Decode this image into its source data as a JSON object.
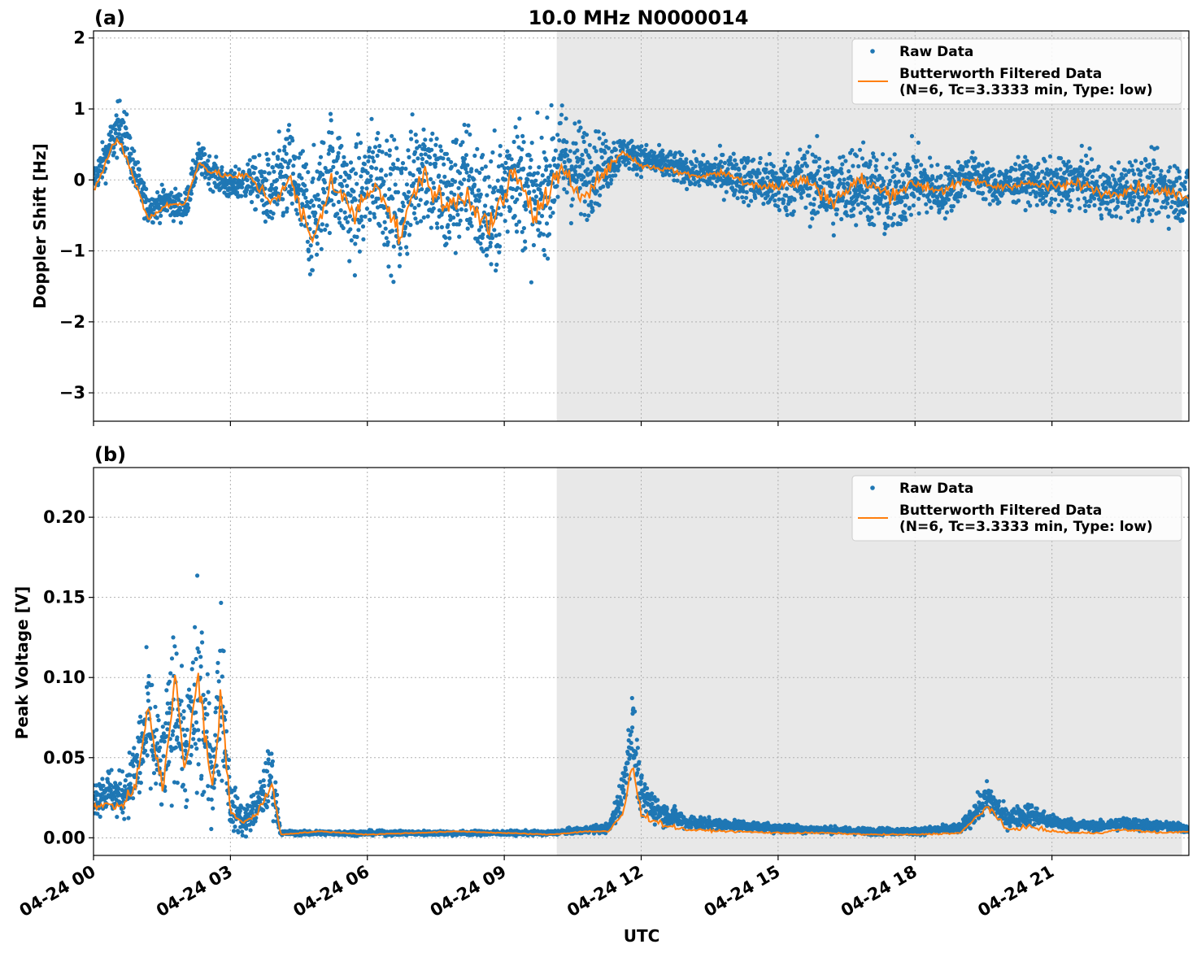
{
  "figure": {
    "title": "10.0 MHz N0000014",
    "xlabel": "UTC",
    "x_ticks": [
      "04-24 00",
      "04-24 03",
      "04-24 06",
      "04-24 09",
      "04-24 12",
      "04-24 15",
      "04-24 18",
      "04-24 21"
    ]
  },
  "colors": {
    "raw": "#1f77b4",
    "filtered": "#ff7f0e",
    "night_shade": "#e8e8e8",
    "grid": "#b0b0b0"
  },
  "chart_data": [
    {
      "type": "scatter",
      "panel_label": "(a)",
      "title": "10.0 MHz N0000014",
      "ylabel": "Doppler Shift [Hz]",
      "xlabel": "",
      "x_unit": "hours UTC",
      "xlim": [
        0,
        24
      ],
      "ylim": [
        -3.4,
        2.1
      ],
      "y_ticks": [
        "2",
        "1",
        "0",
        "−1",
        "−2",
        "−3"
      ],
      "y_tick_values": [
        2,
        1,
        0,
        -1,
        -2,
        -3
      ],
      "shaded_region": [
        10.15,
        23.85
      ],
      "grid": true,
      "legend_position": "top-right",
      "legend": [
        "Raw Data",
        "Butterworth Filtered Data\n(N=6, Tc=3.3333 min, Type: low)"
      ],
      "series": [
        {
          "name": "Raw Data",
          "style": "points",
          "x": [
            0,
            0.25,
            0.45,
            0.6,
            0.75,
            0.9,
            1.2,
            1.6,
            2.0,
            2.3,
            2.6,
            3.0,
            3.4,
            3.9,
            4.3,
            4.8,
            5.2,
            5.7,
            6.2,
            6.7,
            7.2,
            7.7,
            8.2,
            8.7,
            9.2,
            9.7,
            10.2,
            10.7,
            11.2,
            11.6,
            12.0,
            12.6,
            13.2,
            13.8,
            14.4,
            15.0,
            15.6,
            16.2,
            16.8,
            17.4,
            18.0,
            18.6,
            19.2,
            19.8,
            20.4,
            21.0,
            21.6,
            22.2,
            22.8,
            23.4,
            23.9
          ],
          "y": [
            0.0,
            0.3,
            0.6,
            0.8,
            0.5,
            0.1,
            -0.4,
            -0.3,
            -0.4,
            0.3,
            0.1,
            -0.1,
            0.0,
            -0.2,
            0.1,
            -0.6,
            0.2,
            -0.4,
            0.1,
            -0.5,
            0.3,
            -0.3,
            0.0,
            -0.6,
            0.2,
            -0.4,
            0.3,
            0.1,
            0.2,
            0.4,
            0.3,
            0.2,
            0.1,
            0.1,
            0.0,
            -0.1,
            0.0,
            -0.2,
            0.0,
            -0.3,
            0.0,
            -0.2,
            0.1,
            -0.1,
            0.0,
            -0.1,
            0.0,
            -0.2,
            -0.1,
            -0.1,
            -0.2
          ],
          "spread": [
            0.3,
            0.4,
            0.5,
            0.5,
            0.5,
            0.4,
            0.3,
            0.3,
            0.3,
            0.3,
            0.3,
            0.3,
            0.4,
            0.8,
            1.0,
            1.2,
            1.1,
            1.2,
            1.1,
            1.3,
            1.2,
            1.3,
            1.2,
            1.3,
            1.2,
            1.3,
            1.1,
            1.0,
            0.6,
            0.3,
            0.3,
            0.3,
            0.3,
            0.4,
            0.5,
            0.6,
            0.7,
            0.8,
            0.8,
            0.8,
            0.7,
            0.5,
            0.4,
            0.4,
            0.4,
            0.5,
            0.5,
            0.5,
            0.6,
            0.6,
            0.6
          ]
        },
        {
          "name": "Butterworth Filtered Data\n(N=6, Tc=3.3333 min, Type: low)",
          "style": "line",
          "x": [
            0,
            0.25,
            0.45,
            0.6,
            0.75,
            0.9,
            1.2,
            1.6,
            2.0,
            2.3,
            2.6,
            3.0,
            3.4,
            3.9,
            4.3,
            4.8,
            5.2,
            5.7,
            6.2,
            6.7,
            7.2,
            7.7,
            8.2,
            8.7,
            9.2,
            9.7,
            10.2,
            10.7,
            11.2,
            11.6,
            12.0,
            12.6,
            13.2,
            13.8,
            14.4,
            15.0,
            15.6,
            16.2,
            16.8,
            17.4,
            18.0,
            18.6,
            19.2,
            19.8,
            20.4,
            21.0,
            21.6,
            22.2,
            22.8,
            23.4,
            23.9
          ],
          "y": [
            -0.15,
            0.2,
            0.55,
            0.5,
            0.25,
            0.0,
            -0.55,
            -0.35,
            -0.35,
            0.25,
            0.1,
            0.05,
            0.05,
            -0.3,
            0.0,
            -0.9,
            0.0,
            -0.5,
            0.0,
            -0.8,
            0.1,
            -0.4,
            -0.2,
            -0.7,
            0.1,
            -0.5,
            0.1,
            -0.2,
            0.1,
            0.4,
            0.2,
            0.15,
            0.05,
            0.1,
            -0.05,
            -0.1,
            0.0,
            -0.3,
            0.0,
            -0.2,
            -0.05,
            -0.15,
            0.0,
            -0.1,
            -0.05,
            -0.1,
            -0.05,
            -0.2,
            -0.1,
            -0.15,
            -0.25
          ]
        }
      ]
    },
    {
      "type": "scatter",
      "panel_label": "(b)",
      "title": "",
      "ylabel": "Peak Voltage [V]",
      "xlabel": "UTC",
      "x_unit": "hours UTC",
      "xlim": [
        0,
        24
      ],
      "ylim": [
        -0.011,
        0.231
      ],
      "y_ticks": [
        "0.20",
        "0.15",
        "0.10",
        "0.05",
        "0.00"
      ],
      "y_tick_values": [
        0.2,
        0.15,
        0.1,
        0.05,
        0.0
      ],
      "shaded_region": [
        10.15,
        23.85
      ],
      "grid": true,
      "legend_position": "top-right",
      "legend": [
        "Raw Data",
        "Butterworth Filtered Data\n(N=6, Tc=3.3333 min, Type: low)"
      ],
      "series": [
        {
          "name": "Raw Data",
          "style": "points",
          "x": [
            0,
            0.3,
            0.6,
            0.9,
            1.2,
            1.5,
            1.8,
            2.0,
            2.3,
            2.6,
            2.8,
            3.0,
            3.3,
            3.6,
            3.9,
            4.1,
            4.5,
            5.0,
            6.0,
            7.0,
            8.0,
            9.0,
            10.0,
            10.8,
            11.3,
            11.6,
            11.8,
            12.0,
            12.5,
            13.0,
            14.0,
            15.0,
            16.0,
            17.0,
            18.0,
            19.0,
            19.6,
            20.0,
            20.5,
            21.0,
            21.5,
            22.0,
            22.5,
            23.0,
            23.5,
            23.9
          ],
          "y": [
            0.025,
            0.03,
            0.025,
            0.04,
            0.07,
            0.04,
            0.09,
            0.05,
            0.09,
            0.04,
            0.1,
            0.02,
            0.01,
            0.02,
            0.04,
            0.003,
            0.003,
            0.003,
            0.003,
            0.003,
            0.003,
            0.003,
            0.003,
            0.005,
            0.006,
            0.03,
            0.07,
            0.025,
            0.015,
            0.01,
            0.008,
            0.006,
            0.005,
            0.004,
            0.004,
            0.006,
            0.025,
            0.012,
            0.015,
            0.01,
            0.008,
            0.007,
            0.009,
            0.008,
            0.007,
            0.006
          ],
          "spread": [
            0.015,
            0.02,
            0.02,
            0.03,
            0.06,
            0.04,
            0.07,
            0.04,
            0.1,
            0.04,
            0.08,
            0.02,
            0.015,
            0.015,
            0.03,
            0.002,
            0.002,
            0.002,
            0.002,
            0.002,
            0.002,
            0.002,
            0.002,
            0.003,
            0.004,
            0.02,
            0.03,
            0.02,
            0.01,
            0.006,
            0.004,
            0.004,
            0.003,
            0.003,
            0.003,
            0.004,
            0.015,
            0.008,
            0.01,
            0.006,
            0.005,
            0.004,
            0.006,
            0.005,
            0.004,
            0.004
          ]
        },
        {
          "name": "Butterworth Filtered Data\n(N=6, Tc=3.3333 min, Type: low)",
          "style": "line",
          "x": [
            0,
            0.3,
            0.6,
            0.9,
            1.2,
            1.5,
            1.8,
            2.0,
            2.3,
            2.6,
            2.8,
            3.0,
            3.3,
            3.6,
            3.9,
            4.1,
            4.5,
            5.0,
            6.0,
            7.0,
            8.0,
            9.0,
            10.0,
            10.8,
            11.3,
            11.6,
            11.8,
            12.0,
            12.5,
            13.0,
            14.0,
            15.0,
            16.0,
            17.0,
            18.0,
            19.0,
            19.6,
            20.0,
            20.5,
            21.0,
            21.5,
            22.0,
            22.5,
            23.0,
            23.5,
            23.9
          ],
          "y": [
            0.02,
            0.02,
            0.02,
            0.03,
            0.08,
            0.03,
            0.1,
            0.04,
            0.1,
            0.03,
            0.088,
            0.015,
            0.01,
            0.015,
            0.035,
            0.002,
            0.003,
            0.004,
            0.002,
            0.003,
            0.004,
            0.003,
            0.002,
            0.004,
            0.004,
            0.015,
            0.045,
            0.015,
            0.008,
            0.005,
            0.004,
            0.003,
            0.003,
            0.002,
            0.002,
            0.003,
            0.02,
            0.005,
            0.007,
            0.004,
            0.003,
            0.003,
            0.005,
            0.004,
            0.003,
            0.004
          ]
        }
      ]
    }
  ]
}
